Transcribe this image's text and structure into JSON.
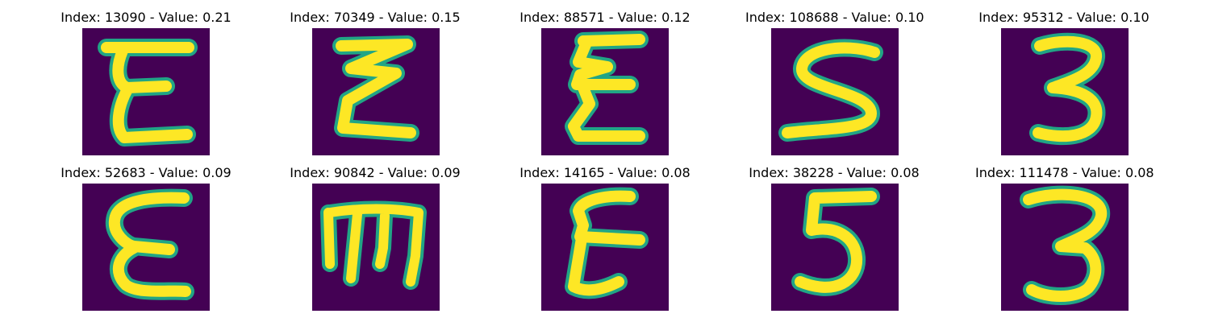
{
  "figure": {
    "colormap": "viridis",
    "background_color": "#440154",
    "stroke_color": "#fde725",
    "edge_color": "#21a585",
    "panels": [
      {
        "title": "Index: 13090 - Value: 0.21",
        "glyph": "E"
      },
      {
        "title": "Index: 70349 - Value: 0.15",
        "glyph": "Z"
      },
      {
        "title": "Index: 88571 - Value: 0.12",
        "glyph": "zigzag-E"
      },
      {
        "title": "Index: 108688 - Value: 0.10",
        "glyph": "S"
      },
      {
        "title": "Index: 95312 - Value: 0.10",
        "glyph": "3"
      },
      {
        "title": "Index: 52683 - Value: 0.09",
        "glyph": "E-curved"
      },
      {
        "title": "Index: 90842 - Value: 0.09",
        "glyph": "m"
      },
      {
        "title": "Index: 14165 - Value: 0.08",
        "glyph": "E-loop"
      },
      {
        "title": "Index: 38228 - Value: 0.08",
        "glyph": "5"
      },
      {
        "title": "Index: 111478 - Value: 0.08",
        "glyph": "3"
      }
    ]
  }
}
